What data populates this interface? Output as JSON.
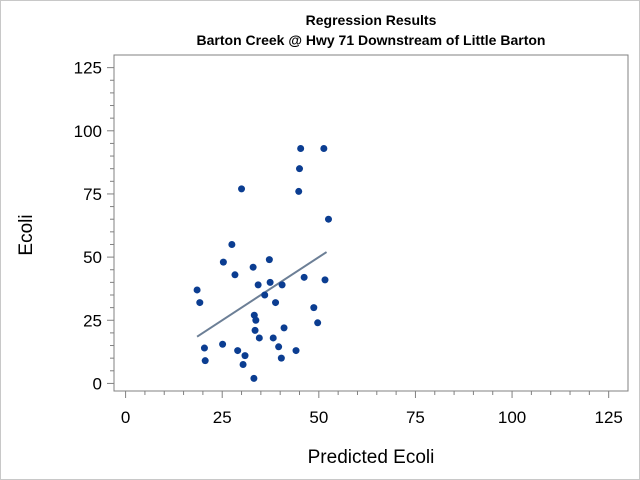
{
  "chart_data": {
    "type": "scatter",
    "title": "Regression Results",
    "subtitle": "Barton Creek @ Hwy 71 Downstream of Little Barton",
    "xlabel": "Predicted Ecoli",
    "ylabel": "Ecoli",
    "xlim": [
      -3,
      130
    ],
    "ylim": [
      -3,
      130
    ],
    "xticks": [
      "0",
      "25",
      "50",
      "75",
      "100",
      "125"
    ],
    "yticks": [
      "0",
      "25",
      "50",
      "75",
      "100",
      "125"
    ],
    "grid": false,
    "colors": {
      "points": "#0b3d91",
      "fit_line": "#6c7f96",
      "axis": "#808080"
    },
    "points": [
      [
        18.5,
        37
      ],
      [
        19.2,
        32
      ],
      [
        20.4,
        14
      ],
      [
        20.6,
        9
      ],
      [
        25.1,
        15.5
      ],
      [
        25.3,
        48
      ],
      [
        27.5,
        55
      ],
      [
        28.3,
        43
      ],
      [
        29.0,
        13
      ],
      [
        30.0,
        77
      ],
      [
        30.4,
        7.5
      ],
      [
        30.9,
        11
      ],
      [
        33.0,
        46
      ],
      [
        33.2,
        2
      ],
      [
        33.3,
        27
      ],
      [
        33.5,
        21
      ],
      [
        33.7,
        25
      ],
      [
        34.3,
        39
      ],
      [
        34.6,
        18
      ],
      [
        36.0,
        35
      ],
      [
        37.2,
        49
      ],
      [
        37.4,
        40
      ],
      [
        38.2,
        18
      ],
      [
        38.8,
        32
      ],
      [
        39.6,
        14.5
      ],
      [
        40.3,
        10
      ],
      [
        40.5,
        39
      ],
      [
        41.0,
        22
      ],
      [
        44.1,
        13
      ],
      [
        44.8,
        76
      ],
      [
        45.0,
        85
      ],
      [
        45.3,
        93
      ],
      [
        46.2,
        42
      ],
      [
        48.7,
        30
      ],
      [
        49.7,
        24
      ],
      [
        51.3,
        93
      ],
      [
        51.6,
        41
      ],
      [
        52.5,
        65
      ]
    ],
    "fit_line": {
      "x": [
        18.5,
        52.0
      ],
      "y": [
        18.5,
        52.0
      ]
    }
  }
}
